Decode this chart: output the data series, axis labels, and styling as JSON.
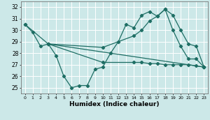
{
  "title": "",
  "xlabel": "Humidex (Indice chaleur)",
  "xlim": [
    -0.5,
    23.5
  ],
  "ylim": [
    24.5,
    32.5
  ],
  "yticks": [
    25,
    26,
    27,
    28,
    29,
    30,
    31,
    32
  ],
  "xticks": [
    0,
    1,
    2,
    3,
    4,
    5,
    6,
    7,
    8,
    9,
    10,
    11,
    12,
    13,
    14,
    15,
    16,
    17,
    18,
    19,
    20,
    21,
    22,
    23
  ],
  "bg_color": "#cce8e8",
  "line_color": "#1e6e64",
  "grid_color": "#ffffff",
  "series": [
    {
      "x": [
        0,
        1,
        2,
        3,
        23
      ],
      "y": [
        30.5,
        29.8,
        28.6,
        28.8,
        26.8
      ]
    },
    {
      "x": [
        0,
        3,
        4,
        5,
        6,
        7,
        8,
        9,
        10,
        11,
        12,
        13,
        14,
        15,
        16,
        17,
        18,
        19,
        20,
        21,
        22,
        23
      ],
      "y": [
        30.5,
        28.8,
        27.8,
        26.0,
        25.0,
        25.2,
        25.2,
        26.6,
        26.8,
        28.0,
        29.0,
        30.5,
        30.2,
        31.3,
        31.6,
        31.2,
        31.8,
        30.0,
        28.6,
        27.5,
        27.5,
        26.8
      ]
    },
    {
      "x": [
        3,
        10,
        14,
        15,
        16,
        17,
        18,
        19,
        20,
        21,
        22,
        23
      ],
      "y": [
        28.8,
        27.2,
        27.2,
        27.2,
        27.1,
        27.1,
        27.0,
        27.0,
        27.0,
        27.0,
        26.9,
        26.8
      ]
    },
    {
      "x": [
        3,
        10,
        14,
        15,
        16,
        17,
        18,
        19,
        20,
        21,
        22,
        23
      ],
      "y": [
        28.8,
        28.5,
        29.5,
        30.0,
        30.8,
        31.2,
        31.8,
        31.3,
        30.0,
        28.8,
        28.6,
        26.8
      ]
    }
  ]
}
